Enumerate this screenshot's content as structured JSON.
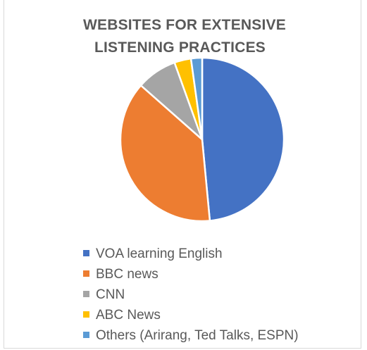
{
  "chart_data": {
    "type": "pie",
    "title": "WEBSITES FOR EXTENSIVE LISTENING PRACTICES",
    "title_lines": [
      "WEBSITES FOR EXTENSIVE",
      "LISTENING PRACTICES"
    ],
    "legend_position": "bottom",
    "slices": [
      {
        "label": "VOA learning English",
        "value": 48.5,
        "color": "#4472c4"
      },
      {
        "label": "BBC news",
        "value": 38,
        "color": "#ed7d31"
      },
      {
        "label": "CNN",
        "value": 8,
        "color": "#a5a5a5"
      },
      {
        "label": "ABC News",
        "value": 3.3,
        "color": "#ffc000"
      },
      {
        "label": "Others (Arirang, Ted Talks, ESPN)",
        "value": 2.2,
        "color": "#5b9bd5"
      }
    ]
  }
}
